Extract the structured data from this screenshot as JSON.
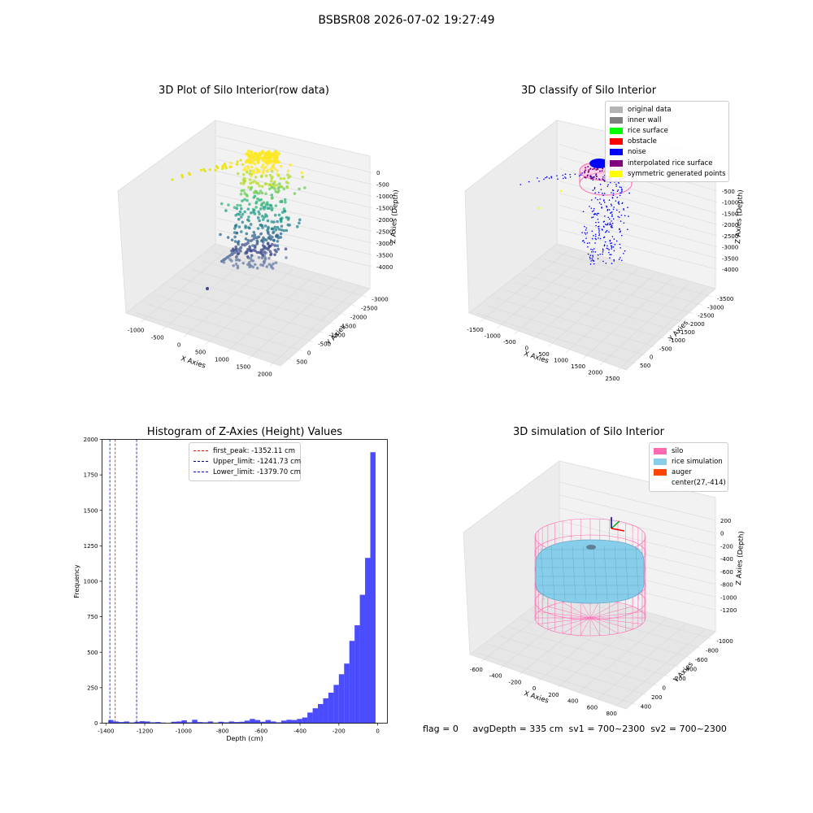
{
  "figure": {
    "suptitle": "BSBSR08 2026-07-02 19:27:49",
    "status_line": "flag = 0     avgDepth = 335 cm  sv1 = 700~2300  sv2 = 700~2300"
  },
  "panels": {
    "raw": {
      "title": "3D Plot of Silo Interior(row data)",
      "xlabel": "X Axies",
      "ylabel": "Y Axies",
      "zlabel": "Z Axies (Depth)",
      "xticks": [
        "-1000",
        "-500",
        "0",
        "500",
        "1000",
        "1500",
        "2000"
      ],
      "yticks": [
        "500",
        "0",
        "-500",
        "-1000",
        "-1500",
        "-2000",
        "-2500",
        "-3000"
      ],
      "zticks": [
        "0",
        "-500",
        "-1000",
        "-1500",
        "-2000",
        "-2500",
        "-3000",
        "-3500",
        "-4000"
      ]
    },
    "classify": {
      "title": "3D classify of Silo Interior",
      "xlabel": "X Axies",
      "ylabel": "Y Axies",
      "zlabel": "Z Axies (Depth)",
      "xticks": [
        "-1500",
        "-1000",
        "-500",
        "0",
        "500",
        "1000",
        "1500",
        "2000",
        "2500"
      ],
      "yticks": [
        "500",
        "0",
        "-500",
        "-1000",
        "-1500",
        "-2000",
        "-2500",
        "-3000",
        "-3500"
      ],
      "zticks": [
        "-500",
        "-1000",
        "-1500",
        "-2000",
        "-2500",
        "-3000",
        "-3500",
        "-4000"
      ],
      "legend": [
        {
          "label": "original data",
          "color": "#b3b3b3"
        },
        {
          "label": "inner wall",
          "color": "#808080"
        },
        {
          "label": "rice surface",
          "color": "#00ff00"
        },
        {
          "label": "obstacle",
          "color": "#ff0000"
        },
        {
          "label": "noise",
          "color": "#0000ff"
        },
        {
          "label": "interpolated rice surface",
          "color": "#800080"
        },
        {
          "label": "symmetric generated points",
          "color": "#ffff00"
        }
      ]
    },
    "simulation": {
      "title": "3D simulation of Silo Interior",
      "xlabel": "X Axies",
      "ylabel": "Y Axies",
      "zlabel": "Z Axies (Depth)",
      "xticks": [
        "-600",
        "-400",
        "-200",
        "0",
        "200",
        "400",
        "600",
        "800"
      ],
      "yticks": [
        "400",
        "200",
        "0",
        "-200",
        "-400",
        "-600",
        "-800",
        "-1000"
      ],
      "zticks": [
        "200",
        "0",
        "-200",
        "-400",
        "-600",
        "-800",
        "-1000",
        "-1200"
      ],
      "legend": [
        {
          "label": "silo",
          "color": "#ff69b4"
        },
        {
          "label": "rice simulation",
          "color": "#87ceeb"
        },
        {
          "label": "auger",
          "color": "#ff4500"
        },
        {
          "label": "center(27,-414)",
          "color": "#ffffff"
        }
      ]
    }
  },
  "chart_data": [
    {
      "type": "histogram",
      "title": "Histogram of Z-Axies (Height) Values",
      "xlabel": "Depth (cm)",
      "ylabel": "Frequency",
      "xlim": [
        -1420,
        50
      ],
      "ylim": [
        0,
        2000
      ],
      "xticks": [
        -1400,
        -1200,
        -1000,
        -800,
        -600,
        -400,
        -200,
        0
      ],
      "yticks": [
        0,
        250,
        500,
        750,
        1000,
        1250,
        1500,
        1750,
        2000
      ],
      "bin_width": 27,
      "bin_starts": [
        -1388,
        -1361,
        -1334,
        -1307,
        -1280,
        -1253,
        -1226,
        -1199,
        -1172,
        -1145,
        -1118,
        -1091,
        -1064,
        -1037,
        -1010,
        -983,
        -956,
        -929,
        -902,
        -875,
        -848,
        -821,
        -794,
        -767,
        -740,
        -713,
        -686,
        -659,
        -632,
        -605,
        -578,
        -551,
        -524,
        -497,
        -470,
        -443,
        -416,
        -389,
        -362,
        -335,
        -308,
        -281,
        -254,
        -227,
        -200,
        -173,
        -146,
        -119,
        -92,
        -65,
        -38,
        -11
      ],
      "counts": [
        22,
        12,
        8,
        12,
        5,
        10,
        14,
        12,
        6,
        8,
        4,
        0,
        10,
        12,
        20,
        6,
        24,
        8,
        6,
        12,
        4,
        10,
        6,
        12,
        8,
        10,
        18,
        30,
        22,
        10,
        22,
        12,
        6,
        18,
        24,
        22,
        30,
        40,
        75,
        105,
        135,
        175,
        215,
        270,
        345,
        420,
        580,
        690,
        905,
        1165,
        1910,
        0
      ],
      "color": "#0000ff",
      "lines": [
        {
          "label": "first_peak: -1352.11 cm",
          "x": -1352.11,
          "color": "#ff0000"
        },
        {
          "label": "Upper_limit: -1241.73 cm",
          "x": -1241.73,
          "color": "#00008b"
        },
        {
          "label": "Lower_limit: -1379.70 cm",
          "x": -1379.7,
          "color": "#0000ff"
        }
      ]
    }
  ]
}
